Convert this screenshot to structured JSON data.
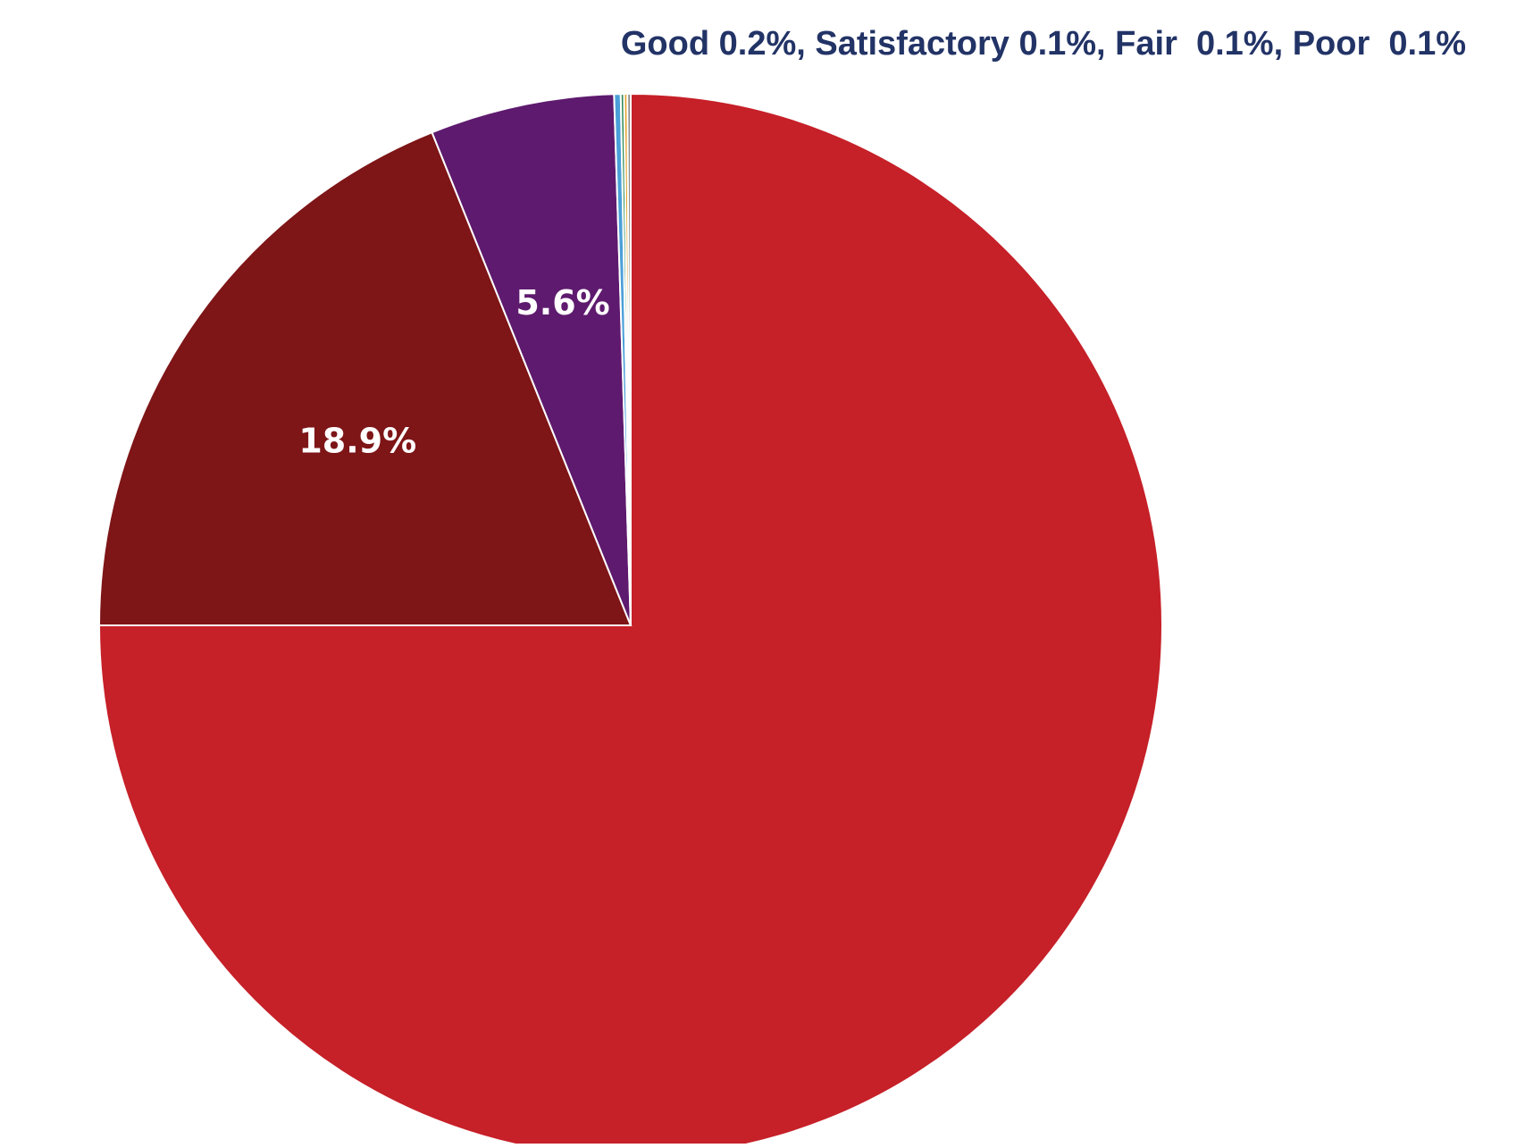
{
  "chart_data": {
    "type": "pie",
    "slices": [
      {
        "value": 75.0,
        "color": "#c62028",
        "label": ""
      },
      {
        "value": 18.9,
        "color": "#7e1517",
        "label": "18.9%"
      },
      {
        "value": 5.6,
        "color": "#5e1a6e",
        "label": "5.6%"
      },
      {
        "value": 0.2,
        "color": "#4a9fd8",
        "label": ""
      },
      {
        "value": 0.1,
        "color": "#2e8b57",
        "label": ""
      },
      {
        "value": 0.1,
        "color": "#e2a029",
        "label": ""
      },
      {
        "value": 0.1,
        "color": "#8a8a8a",
        "label": ""
      }
    ],
    "annotation": "Good 0.2%, Satisfactory 0.1%, Fair  0.1%, Poor  0.1%"
  }
}
